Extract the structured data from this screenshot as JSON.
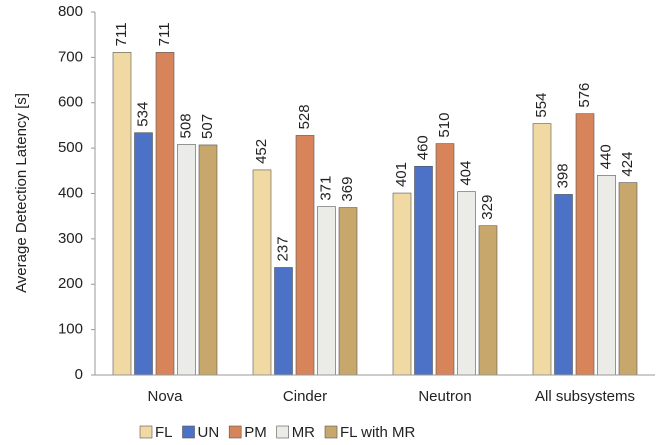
{
  "chart_data": {
    "type": "bar",
    "y_label": "Average Detection Latency [s]",
    "categories": [
      "Nova",
      "Cinder",
      "Neutron",
      "All subsystems"
    ],
    "series": [
      {
        "name": "FL",
        "color": "#f0d9a2",
        "values": [
          711,
          452,
          401,
          554
        ]
      },
      {
        "name": "UN",
        "color": "#4c72c8",
        "values": [
          534,
          237,
          460,
          398
        ]
      },
      {
        "name": "PM",
        "color": "#d8845a",
        "values": [
          711,
          528,
          510,
          576
        ]
      },
      {
        "name": "MR",
        "color": "#ebebe8",
        "values": [
          508,
          371,
          404,
          440
        ]
      },
      {
        "name": "FL with MR",
        "color": "#c8a76c",
        "values": [
          507,
          369,
          329,
          424
        ]
      }
    ],
    "ylim": [
      0,
      800
    ],
    "yticks": [
      0,
      100,
      200,
      300,
      400,
      500,
      600,
      700,
      800
    ],
    "legend": "bottom"
  }
}
